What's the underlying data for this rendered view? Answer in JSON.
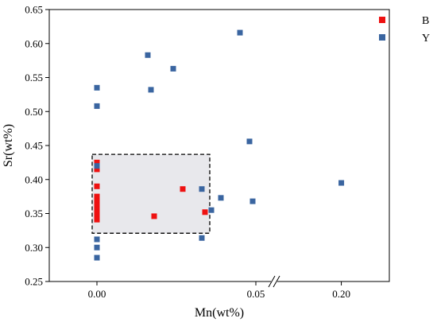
{
  "chart_data": {
    "type": "scatter",
    "title": "",
    "xlabel": "Mn(wt%)",
    "ylabel": "Sr(wt%)",
    "x_axis_break": true,
    "x_segments": [
      {
        "range": [
          -0.015,
          0.055
        ],
        "ticks": [
          0.0,
          0.05
        ],
        "tick_labels": [
          "0.00",
          "0.05"
        ]
      },
      {
        "range": [
          0.16,
          0.23
        ],
        "ticks": [
          0.2
        ],
        "tick_labels": [
          "0.20"
        ]
      }
    ],
    "ylim": [
      0.25,
      0.65
    ],
    "y_ticks": [
      0.25,
      0.3,
      0.35,
      0.4,
      0.45,
      0.5,
      0.55,
      0.6,
      0.65
    ],
    "y_tick_labels": [
      "0.25",
      "0.30",
      "0.35",
      "0.40",
      "0.45",
      "0.50",
      "0.55",
      "0.60",
      "0.65"
    ],
    "grid": false,
    "legend_position": "top-right",
    "highlight_box": {
      "x": [
        -0.0015,
        0.0355
      ],
      "y": [
        0.321,
        0.437
      ],
      "style": "dashed",
      "fill": "#e8e8ec"
    },
    "series": [
      {
        "name": "B",
        "color": "#ee1111",
        "marker": "square",
        "points": [
          [
            0.0,
            0.425
          ],
          [
            0.0,
            0.415
          ],
          [
            0.0,
            0.39
          ],
          [
            0.0,
            0.375
          ],
          [
            0.0,
            0.368
          ],
          [
            0.0,
            0.362
          ],
          [
            0.0,
            0.357
          ],
          [
            0.0,
            0.352
          ],
          [
            0.0,
            0.348
          ],
          [
            0.0,
            0.344
          ],
          [
            0.0,
            0.341
          ],
          [
            0.027,
            0.386
          ],
          [
            0.018,
            0.346
          ],
          [
            0.034,
            0.352
          ]
        ]
      },
      {
        "name": "Y",
        "color": "#3a65a0",
        "marker": "square",
        "points": [
          [
            0.0,
            0.535
          ],
          [
            0.0,
            0.508
          ],
          [
            0.0,
            0.42
          ],
          [
            0.0,
            0.312
          ],
          [
            0.0,
            0.3
          ],
          [
            0.0,
            0.285
          ],
          [
            0.016,
            0.583
          ],
          [
            0.017,
            0.532
          ],
          [
            0.024,
            0.563
          ],
          [
            0.045,
            0.616
          ],
          [
            0.048,
            0.456
          ],
          [
            0.049,
            0.368
          ],
          [
            0.039,
            0.373
          ],
          [
            0.036,
            0.355
          ],
          [
            0.033,
            0.386
          ],
          [
            0.033,
            0.314
          ],
          [
            0.2,
            0.395
          ]
        ]
      }
    ]
  }
}
